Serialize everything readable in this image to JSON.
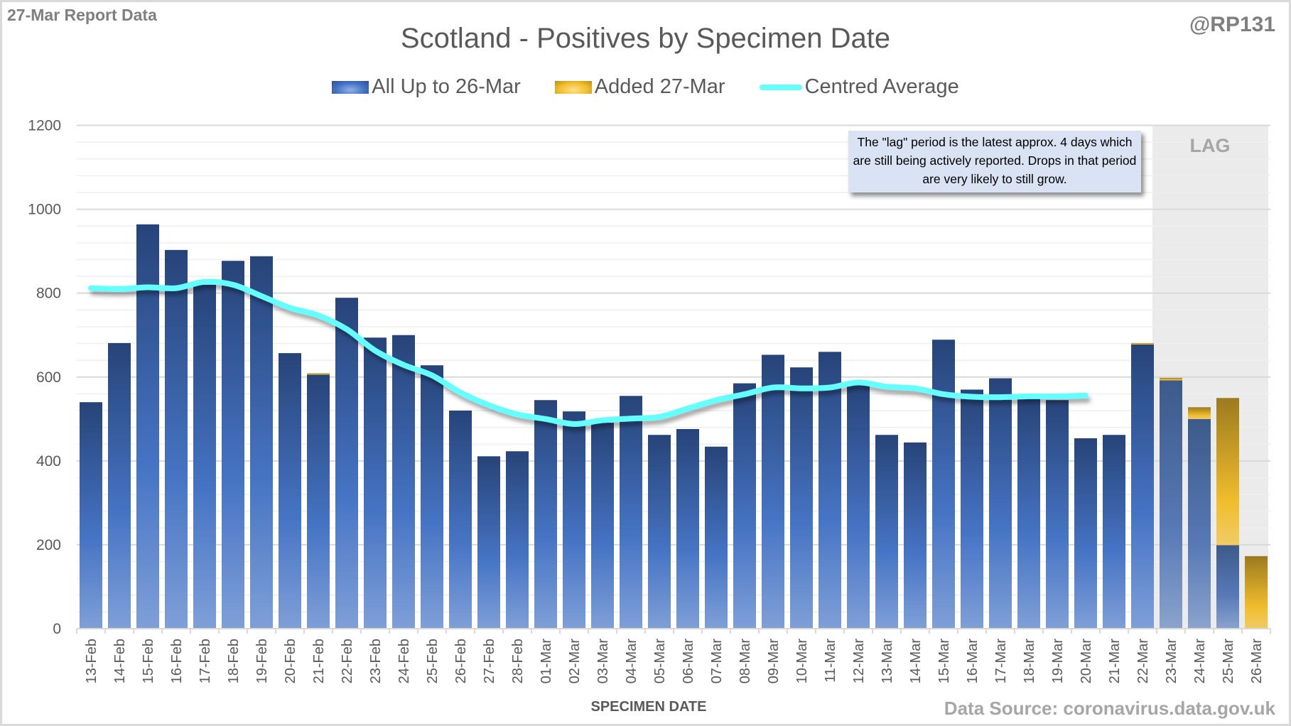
{
  "header": {
    "report_label": "27-Mar Report Data",
    "handle": "@RP131",
    "source": "Data Source: coronavirus.data.gov.uk"
  },
  "annotation": {
    "note": "The \"lag\" period is the latest approx. 4 days which are still being actively reported.  Drops in that period are very likely to still grow.",
    "lag_label": "LAG",
    "lag_days": 4
  },
  "colors": {
    "all_up_to": "#4472c4",
    "added": "#f2be2c",
    "average": "#66ffff",
    "lag_shade": "#ebebeb",
    "note_bg": "#dae3f3"
  },
  "chart_data": {
    "type": "bar",
    "stacked": true,
    "title": "Scotland - Positives by Specimen Date",
    "xlabel": "SPECIMEN DATE",
    "ylabel": "",
    "ylim": [
      0,
      1200
    ],
    "yticks": [
      0,
      200,
      400,
      600,
      800,
      1000,
      1200
    ],
    "grid": true,
    "legend_position": "top",
    "categories": [
      "13-Feb",
      "14-Feb",
      "15-Feb",
      "16-Feb",
      "17-Feb",
      "18-Feb",
      "19-Feb",
      "20-Feb",
      "21-Feb",
      "22-Feb",
      "23-Feb",
      "24-Feb",
      "25-Feb",
      "26-Feb",
      "27-Feb",
      "28-Feb",
      "01-Mar",
      "02-Mar",
      "03-Mar",
      "04-Mar",
      "05-Mar",
      "06-Mar",
      "07-Mar",
      "08-Mar",
      "09-Mar",
      "10-Mar",
      "11-Mar",
      "12-Mar",
      "13-Mar",
      "14-Mar",
      "15-Mar",
      "16-Mar",
      "17-Mar",
      "18-Mar",
      "19-Mar",
      "20-Mar",
      "21-Mar",
      "22-Mar",
      "23-Mar",
      "24-Mar",
      "25-Mar",
      "26-Mar"
    ],
    "series": [
      {
        "name": "All Up to 26-Mar",
        "type": "bar",
        "values": [
          540,
          681,
          964,
          903,
          820,
          877,
          888,
          657,
          607,
          789,
          694,
          700,
          628,
          520,
          411,
          423,
          545,
          518,
          491,
          555,
          462,
          476,
          434,
          585,
          653,
          623,
          660,
          584,
          462,
          444,
          689,
          570,
          597,
          548,
          545,
          454,
          462,
          678,
          592,
          500,
          199,
          0
        ]
      },
      {
        "name": "Added 27-Mar",
        "type": "bar",
        "values": [
          0,
          0,
          0,
          0,
          0,
          0,
          0,
          0,
          2,
          0,
          0,
          0,
          0,
          0,
          0,
          0,
          0,
          0,
          0,
          0,
          0,
          0,
          0,
          0,
          0,
          0,
          0,
          0,
          0,
          0,
          0,
          0,
          0,
          0,
          0,
          0,
          0,
          3,
          6,
          28,
          351,
          173
        ]
      },
      {
        "name": "Centred Average",
        "type": "line",
        "values": [
          812,
          810,
          814,
          812,
          827,
          820,
          793,
          765,
          747,
          714,
          663,
          629,
          604,
          563,
          533,
          511,
          500,
          488,
          497,
          501,
          505,
          525,
          545,
          559,
          575,
          573,
          575,
          587,
          577,
          573,
          559,
          553,
          552,
          554,
          554,
          556,
          null,
          null,
          null,
          null,
          null,
          null
        ]
      }
    ],
    "annotations": [
      "The \"lag\" period is the latest approx. 4 days which are still being actively reported.  Drops in that period are very likely to still grow.",
      "LAG"
    ]
  }
}
